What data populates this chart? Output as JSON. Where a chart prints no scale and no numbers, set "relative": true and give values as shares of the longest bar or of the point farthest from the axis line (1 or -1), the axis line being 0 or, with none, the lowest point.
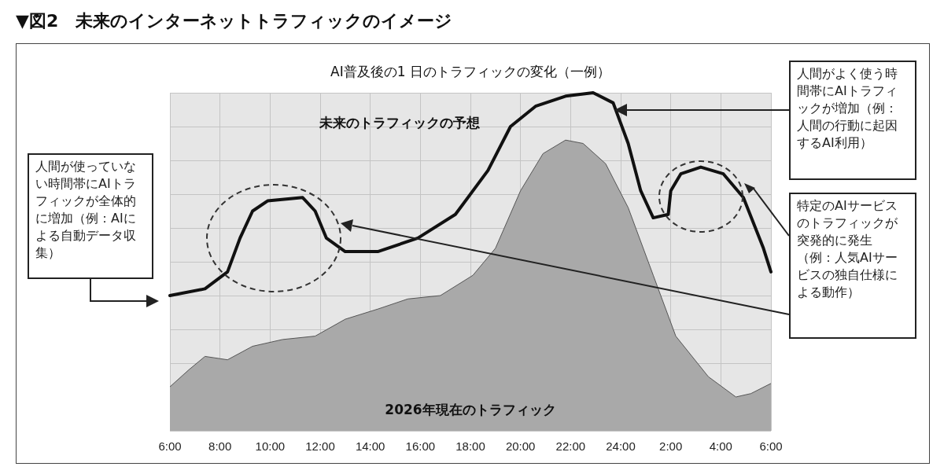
{
  "chart_data": {
    "type": "line",
    "title": "▼図2　未来のインターネットトラフィックのイメージ",
    "subtitle": "AI普及後の1 日のトラフィックの変化（一例）",
    "relative": true,
    "grid": true,
    "xlim": [
      "2026-01-01T06:00",
      "2026-01-02T06:00"
    ],
    "xticks": [
      {
        "value": "2026-01-01T06:00",
        "label": "6:00"
      },
      {
        "value": "2026-01-01T08:00",
        "label": "8:00"
      },
      {
        "value": "2026-01-01T10:00",
        "label": "10:00"
      },
      {
        "value": "2026-01-01T12:00",
        "label": "12:00"
      },
      {
        "value": "2026-01-01T14:00",
        "label": "14:00"
      },
      {
        "value": "2026-01-01T16:00",
        "label": "16:00"
      },
      {
        "value": "2026-01-01T18:00",
        "label": "18:00"
      },
      {
        "value": "2026-01-01T20:00",
        "label": "20:00"
      },
      {
        "value": "2026-01-01T22:00",
        "label": "22:00"
      },
      {
        "value": "2026-01-02T00:00",
        "label": "24:00"
      },
      {
        "value": "2026-01-02T02:00",
        "label": "2:00"
      },
      {
        "value": "2026-01-02T04:00",
        "label": "4:00"
      },
      {
        "value": "2026-01-02T06:00",
        "label": "6:00"
      }
    ],
    "series": [
      {
        "name": "2026年現在のトラフィック",
        "type": "area",
        "color": "#a9a9a9",
        "x": [
          "2026-01-01T06:00",
          "2026-01-01T06:45",
          "2026-01-01T07:24",
          "2026-01-01T08:18",
          "2026-01-01T09:18",
          "2026-01-01T10:30",
          "2026-01-01T11:48",
          "2026-01-01T13:00",
          "2026-01-01T14:18",
          "2026-01-01T15:30",
          "2026-01-01T16:48",
          "2026-01-01T18:06",
          "2026-01-01T19:00",
          "2026-01-01T20:00",
          "2026-01-01T20:54",
          "2026-01-01T21:48",
          "2026-01-01T22:30",
          "2026-01-01T23:24",
          "2026-01-02T00:18",
          "2026-01-02T01:18",
          "2026-01-02T02:12",
          "2026-01-02T03:30",
          "2026-01-02T04:36",
          "2026-01-02T05:12",
          "2026-01-02T06:00"
        ],
        "values": [
          0.13,
          0.18,
          0.22,
          0.21,
          0.25,
          0.27,
          0.28,
          0.33,
          0.36,
          0.39,
          0.4,
          0.46,
          0.54,
          0.71,
          0.82,
          0.86,
          0.85,
          0.79,
          0.66,
          0.46,
          0.28,
          0.16,
          0.1,
          0.11,
          0.14
        ]
      },
      {
        "name": "未来のトラフィックの予想",
        "color": "#111111",
        "x": [
          "2026-01-01T06:00",
          "2026-01-01T07:24",
          "2026-01-01T08:18",
          "2026-01-01T08:48",
          "2026-01-01T09:18",
          "2026-01-01T09:54",
          "2026-01-01T11:18",
          "2026-01-01T11:48",
          "2026-01-01T12:15",
          "2026-01-01T13:00",
          "2026-01-01T14:18",
          "2026-01-01T15:54",
          "2026-01-01T17:24",
          "2026-01-01T18:42",
          "2026-01-01T19:36",
          "2026-01-01T20:36",
          "2026-01-01T21:48",
          "2026-01-01T22:54",
          "2026-01-01T23:42",
          "2026-01-02T00:18",
          "2026-01-02T00:48",
          "2026-01-02T01:18",
          "2026-01-02T01:54",
          "2026-01-02T02:00",
          "2026-01-02T02:24",
          "2026-01-02T03:12",
          "2026-01-02T04:06",
          "2026-01-02T04:54",
          "2026-01-02T05:42",
          "2026-01-02T06:00"
        ],
        "values": [
          0.4,
          0.42,
          0.47,
          0.57,
          0.65,
          0.68,
          0.69,
          0.65,
          0.57,
          0.53,
          0.53,
          0.57,
          0.64,
          0.77,
          0.9,
          0.96,
          0.99,
          1,
          0.97,
          0.85,
          0.71,
          0.63,
          0.64,
          0.71,
          0.76,
          0.78,
          0.76,
          0.69,
          0.54,
          0.47
        ]
      }
    ],
    "annotations": [
      "人間が使っていない時間帯にAIトラフィックが全体的に増加（例：AIによる自動データ収集）",
      "人間がよく使う時間帯にAIトラフィックが増加（例：人間の行動に起因するAI利用）",
      "特定のAIサービスのトラフィックが突発的に発生（例：人気AIサービスの独自仕様による動作）"
    ]
  }
}
